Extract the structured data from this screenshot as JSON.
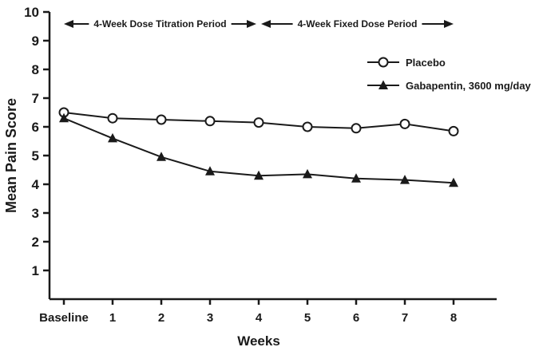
{
  "chart_data": {
    "type": "line",
    "title": "",
    "xlabel": "Weeks",
    "ylabel": "Mean Pain Score",
    "ylim": [
      0,
      10
    ],
    "yticks": [
      1,
      2,
      3,
      4,
      5,
      6,
      7,
      8,
      9,
      10
    ],
    "grid": false,
    "legend_position": "top-right",
    "categories": [
      "Baseline",
      "1",
      "2",
      "3",
      "4",
      "5",
      "6",
      "7",
      "8"
    ],
    "series": [
      {
        "name": "Placebo",
        "marker": "circle-open",
        "values": [
          6.5,
          6.3,
          6.25,
          6.2,
          6.15,
          6.0,
          5.95,
          6.1,
          5.85
        ]
      },
      {
        "name": "Gabapentin, 3600 mg/day",
        "marker": "triangle-filled",
        "values": [
          6.3,
          5.6,
          4.95,
          4.45,
          4.3,
          4.35,
          4.2,
          4.15,
          4.05
        ]
      }
    ],
    "annotations": [
      {
        "label": "4-Week Dose Titration Period",
        "from_index": 0,
        "to_index": 4
      },
      {
        "label": "4-Week Fixed Dose Period",
        "from_index": 4,
        "to_index": 8
      }
    ],
    "colors": {
      "line": "#1a1a1a",
      "background": "#ffffff"
    }
  }
}
